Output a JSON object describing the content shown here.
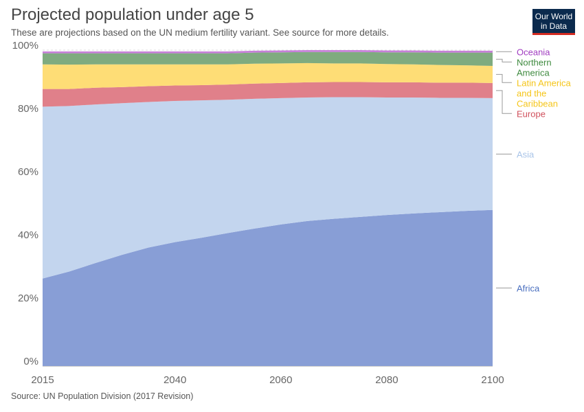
{
  "title": "Projected population under age 5",
  "subtitle": "These are projections based on the UN medium fertility variant. See source for more details.",
  "logo": {
    "line1": "Our World",
    "line2": "in Data"
  },
  "source": "Source: UN Population Division (2017 Revision)",
  "chart_data": {
    "type": "area",
    "stacked": true,
    "percent": true,
    "x": [
      2015,
      2020,
      2025,
      2030,
      2035,
      2040,
      2045,
      2050,
      2055,
      2060,
      2065,
      2070,
      2075,
      2080,
      2085,
      2090,
      2095,
      2100
    ],
    "xticks": [
      "2015",
      "2040",
      "2060",
      "2080",
      "2100"
    ],
    "yticks": [
      "0%",
      "20%",
      "40%",
      "60%",
      "80%",
      "100%"
    ],
    "ylim": [
      0,
      100
    ],
    "grid": true,
    "legend": "right",
    "series": [
      {
        "name": "Africa",
        "color": "#889ed6",
        "labelColor": "#4a6fbf",
        "values": [
          27.7,
          29.9,
          32.6,
          35.2,
          37.5,
          39.2,
          40.6,
          42.1,
          43.5,
          44.8,
          45.9,
          46.6,
          47.2,
          47.8,
          48.3,
          48.7,
          49.1,
          49.4
        ]
      },
      {
        "name": "Asia",
        "color": "#c3d5ee",
        "labelColor": "#a9c4e8",
        "values": [
          54.4,
          52.4,
          50.2,
          48.0,
          46.1,
          44.7,
          43.5,
          42.2,
          41.1,
          40.0,
          39.1,
          38.5,
          37.9,
          37.2,
          36.7,
          36.2,
          35.8,
          35.4
        ]
      },
      {
        "name": "Europe",
        "color": "#e0808a",
        "labelColor": "#d0505c",
        "values": [
          5.6,
          5.4,
          5.3,
          5.1,
          5.0,
          4.9,
          4.8,
          4.8,
          4.8,
          4.8,
          4.8,
          4.8,
          4.8,
          4.8,
          4.8,
          4.8,
          4.8,
          4.8
        ]
      },
      {
        "name": "Latin America and the Caribbean",
        "color": "#fedd76",
        "labelColor": "#f5c518",
        "values": [
          7.8,
          7.7,
          7.4,
          7.2,
          6.9,
          6.7,
          6.6,
          6.4,
          6.3,
          6.2,
          6.1,
          5.9,
          5.9,
          5.8,
          5.7,
          5.6,
          5.5,
          5.4
        ]
      },
      {
        "name": "Northern America",
        "color": "#7fab7f",
        "labelColor": "#3e8a3e",
        "values": [
          3.5,
          3.6,
          3.5,
          3.5,
          3.5,
          3.5,
          3.5,
          3.5,
          3.5,
          3.5,
          3.5,
          3.6,
          3.6,
          3.7,
          3.8,
          3.9,
          4.0,
          4.2
        ]
      },
      {
        "name": "Oceania",
        "color": "#c67fd8",
        "labelColor": "#a03cc0",
        "values": [
          0.6,
          0.6,
          0.6,
          0.6,
          0.6,
          0.6,
          0.6,
          0.6,
          0.6,
          0.6,
          0.6,
          0.6,
          0.6,
          0.6,
          0.6,
          0.6,
          0.6,
          0.6
        ]
      }
    ]
  }
}
